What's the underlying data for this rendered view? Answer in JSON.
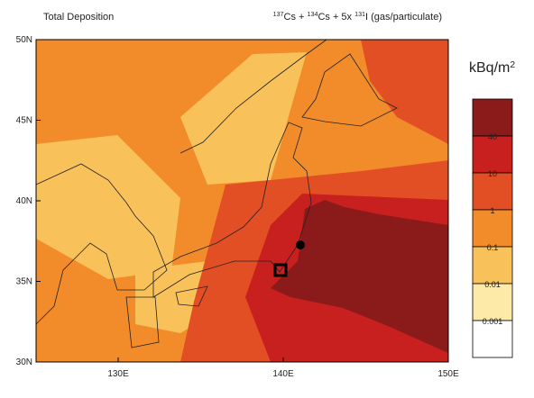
{
  "header": {
    "title": "Total Deposition",
    "subtitle": [
      {
        "text": "137",
        "sup": true
      },
      {
        "text": "Cs + ",
        "sup": false
      },
      {
        "text": "134",
        "sup": true
      },
      {
        "text": "Cs + 5x ",
        "sup": false
      },
      {
        "text": "131",
        "sup": true
      },
      {
        "text": "I (gas/particulate)",
        "sup": false
      }
    ]
  },
  "axes": {
    "lat_labels": [
      "50N",
      "45N",
      "40N",
      "35N",
      "30N"
    ],
    "lon_labels": [
      "130E",
      "140E",
      "150E"
    ]
  },
  "legend": {
    "unit": [
      {
        "text": "kBq/m",
        "sup": false
      },
      {
        "text": "2",
        "sup": true
      }
    ],
    "colors": [
      "#8b1a1a",
      "#c8201e",
      "#e34f25",
      "#f28c2a",
      "#f9c15a",
      "#fde9a8",
      "#ffffff"
    ],
    "labels": [
      "40",
      "10",
      "1",
      "0.1",
      "0.01",
      "0.001"
    ]
  }
}
